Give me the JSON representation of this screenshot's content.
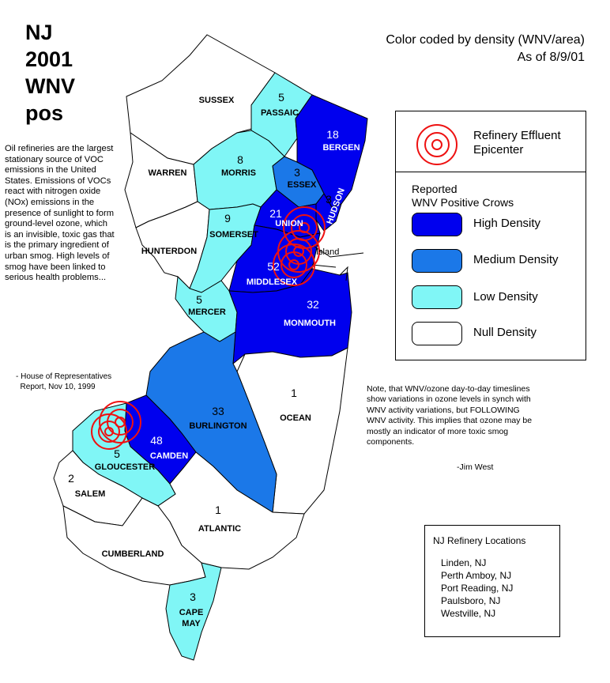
{
  "title": "NJ\n2001\nWNV\npos",
  "header": {
    "line1": "Color coded by density (WNV/area)",
    "line2": "As of 8/9/01"
  },
  "quote": {
    "text": "Oil refineries are the largest stationary source of VOC emissions in the United States. Emissions of VOCs react with nitrogen oxide (NOx) emissions in the presence of sunlight to form ground-level ozone, which is an invisible, toxic gas that is the primary ingredient of urban smog. High levels of smog have been linked to serious health problems...",
    "source": "- House of Representatives\n  Report, Nov 10, 1999"
  },
  "note": {
    "text": "Note, that WNV/ozone day-to-day timeslines show variations in ozone levels in synch with WNV activity variations, but FOLLOWING WNV activity.  This implies that ozone may be mostly an indicator of more toxic smog components.",
    "signature": "-Jim West"
  },
  "colors": {
    "high": "#0000ee",
    "medium": "#1b78e8",
    "low": "#80f6f6",
    "null": "#ffffff",
    "epicenter": "#ee1111"
  },
  "legend": {
    "epicenter_label": "Refinery Effluent Epicenter",
    "reported_label": "Reported\nWNV Positive Crows",
    "items": [
      {
        "label": "High Density",
        "color": "#0000ee"
      },
      {
        "label": "Medium Density",
        "color": "#1b78e8"
      },
      {
        "label": "Low Density",
        "color": "#80f6f6"
      },
      {
        "label": "Null Density",
        "color": "#ffffff"
      }
    ]
  },
  "counties": {
    "sussex": {
      "name": "SUSSEX",
      "count": ""
    },
    "passaic": {
      "name": "PASSAIC",
      "count": "5"
    },
    "bergen": {
      "name": "BERGEN",
      "count": "18"
    },
    "warren": {
      "name": "WARREN",
      "count": ""
    },
    "morris": {
      "name": "MORRIS",
      "count": "8"
    },
    "essex": {
      "name": "ESSEX",
      "count": "3"
    },
    "hudson": {
      "name": "HUDSON",
      "count": "3"
    },
    "union": {
      "name": "UNION",
      "count": "21"
    },
    "hunterdon": {
      "name": "HUNTERDON",
      "count": ""
    },
    "somerset": {
      "name": "SOMERSET",
      "count": "9"
    },
    "middlesex": {
      "name": "MIDDLESEX",
      "count": "52"
    },
    "mercer": {
      "name": "MERCER",
      "count": "5"
    },
    "monmouth": {
      "name": "MONMOUTH",
      "count": "32"
    },
    "burlington": {
      "name": "BURLINGTON",
      "count": "33"
    },
    "ocean": {
      "name": "OCEAN",
      "count": "1"
    },
    "camden": {
      "name": "CAMDEN",
      "count": "48"
    },
    "gloucester": {
      "name": "GLOUCESTER",
      "count": "5"
    },
    "salem": {
      "name": "SALEM",
      "count": "2"
    },
    "atlantic": {
      "name": "ATLANTIC",
      "count": "1"
    },
    "cumberland": {
      "name": "CUMBERLAND",
      "count": ""
    },
    "capemay": {
      "name": "CAPE\nMAY",
      "count": "3"
    }
  },
  "island_label": "Island",
  "refineries": {
    "title": "NJ Refinery Locations",
    "items": [
      "Linden, NJ",
      "Perth Amboy, NJ",
      "Port Reading, NJ",
      "Paulsboro, NJ",
      "Westville, NJ"
    ]
  }
}
